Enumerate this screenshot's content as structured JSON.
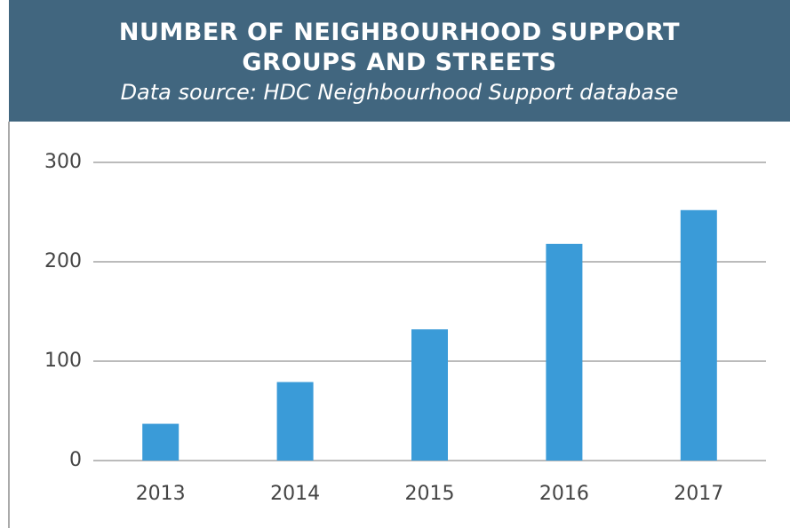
{
  "chart_data": {
    "type": "bar",
    "title": "NUMBER OF NEIGHBOURHOOD SUPPORT\nGROUPS AND STREETS",
    "subtitle": "Data source: HDC Neighbourhood Support database",
    "categories": [
      "2013",
      "2014",
      "2015",
      "2016",
      "2017"
    ],
    "values": [
      37,
      79,
      132,
      218,
      252
    ],
    "color": "#3a9bd8",
    "ylim": [
      0,
      300
    ],
    "yticks": [
      0,
      100,
      200,
      300
    ],
    "grid": true
  }
}
